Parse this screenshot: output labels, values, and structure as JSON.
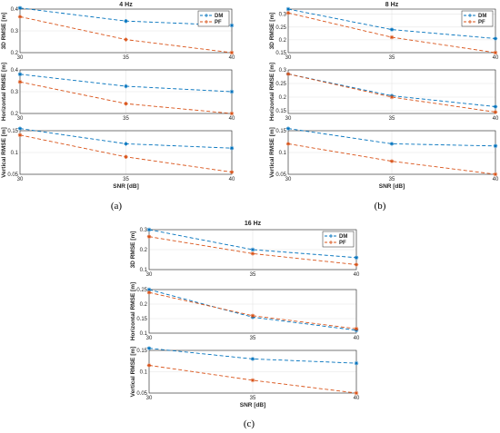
{
  "colors": {
    "DM": "#0072BD",
    "PF": "#D95319",
    "grid": "#e4e4e4",
    "axis": "#262626"
  },
  "chart_data": [
    {
      "caption": "(a)",
      "title": "4 Hz",
      "legend": [
        "DM",
        "PF"
      ],
      "legend_position": "top-right",
      "xlabel": "SNR [dB]",
      "panels": [
        {
          "type": "line",
          "ylabel": "3D RMSE [m]",
          "x": [
            30,
            35,
            40
          ],
          "xlim": [
            30,
            40
          ],
          "ylim": [
            0.2,
            0.4
          ],
          "yticks": [
            "0.2",
            "0.3",
            "0.4"
          ],
          "grid": true,
          "series": [
            {
              "name": "DM",
              "values": [
                0.405,
                0.345,
                0.325
              ]
            },
            {
              "name": "PF",
              "values": [
                0.365,
                0.26,
                0.2
              ]
            }
          ]
        },
        {
          "type": "line",
          "ylabel": "Horizontal RMSE [m]",
          "x": [
            30,
            35,
            40
          ],
          "xlim": [
            30,
            40
          ],
          "ylim": [
            0.2,
            0.4
          ],
          "yticks": [
            "0.2",
            "0.3",
            "0.4"
          ],
          "grid": true,
          "series": [
            {
              "name": "DM",
              "values": [
                0.38,
                0.325,
                0.3
              ]
            },
            {
              "name": "PF",
              "values": [
                0.345,
                0.245,
                0.2
              ]
            }
          ]
        },
        {
          "type": "line",
          "ylabel": "Vertical RMSE [m]",
          "x": [
            30,
            35,
            40
          ],
          "xlim": [
            30,
            40
          ],
          "ylim": [
            0.05,
            0.15
          ],
          "yticks": [
            "0.05",
            "0.1",
            "0.15"
          ],
          "grid": true,
          "series": [
            {
              "name": "DM",
              "values": [
                0.155,
                0.12,
                0.11
              ]
            },
            {
              "name": "PF",
              "values": [
                0.14,
                0.09,
                0.055
              ]
            }
          ]
        }
      ]
    },
    {
      "caption": "(b)",
      "title": "8 Hz",
      "legend": [
        "DM",
        "PF"
      ],
      "legend_position": "top-right",
      "xlabel": "SNR [dB]",
      "panels": [
        {
          "type": "line",
          "ylabel": "3D RMSE [m]",
          "x": [
            30,
            35,
            40
          ],
          "xlim": [
            30,
            40
          ],
          "ylim": [
            0.15,
            0.32
          ],
          "yticks": [
            "0.15",
            "0.2",
            "0.25",
            "0.3"
          ],
          "grid": true,
          "series": [
            {
              "name": "DM",
              "values": [
                0.32,
                0.24,
                0.205
              ]
            },
            {
              "name": "PF",
              "values": [
                0.305,
                0.21,
                0.15
              ]
            }
          ]
        },
        {
          "type": "line",
          "ylabel": "Horizontal RMSE [m]",
          "x": [
            30,
            35,
            40
          ],
          "xlim": [
            30,
            40
          ],
          "ylim": [
            0.14,
            0.3
          ],
          "yticks": [
            "0.15",
            "0.2",
            "0.25",
            "0.3"
          ],
          "grid": true,
          "series": [
            {
              "name": "DM",
              "values": [
                0.285,
                0.205,
                0.165
              ]
            },
            {
              "name": "PF",
              "values": [
                0.285,
                0.2,
                0.145
              ]
            }
          ]
        },
        {
          "type": "line",
          "ylabel": "Vertical RMSE [m]",
          "x": [
            30,
            35,
            40
          ],
          "xlim": [
            30,
            40
          ],
          "ylim": [
            0.05,
            0.15
          ],
          "yticks": [
            "0.05",
            "0.1",
            "0.15"
          ],
          "grid": true,
          "series": [
            {
              "name": "DM",
              "values": [
                0.155,
                0.12,
                0.115
              ]
            },
            {
              "name": "PF",
              "values": [
                0.12,
                0.08,
                0.05
              ]
            }
          ]
        }
      ]
    },
    {
      "caption": "(c)",
      "title": "16 Hz",
      "legend": [
        "DM",
        "PF"
      ],
      "legend_position": "top-right",
      "xlabel": "SNR [dB]",
      "panels": [
        {
          "type": "line",
          "ylabel": "3D RMSE [m]",
          "x": [
            30,
            35,
            40
          ],
          "xlim": [
            30,
            40
          ],
          "ylim": [
            0.1,
            0.3
          ],
          "yticks": [
            "0.1",
            "0.2",
            "0.3"
          ],
          "grid": true,
          "series": [
            {
              "name": "DM",
              "values": [
                0.3,
                0.2,
                0.16
              ]
            },
            {
              "name": "PF",
              "values": [
                0.265,
                0.18,
                0.125
              ]
            }
          ]
        },
        {
          "type": "line",
          "ylabel": "Horizontal RMSE [m]",
          "x": [
            30,
            35,
            40
          ],
          "xlim": [
            30,
            40
          ],
          "ylim": [
            0.1,
            0.25
          ],
          "yticks": [
            "0.1",
            "0.15",
            "0.2",
            "0.25"
          ],
          "grid": true,
          "series": [
            {
              "name": "DM",
              "values": [
                0.25,
                0.155,
                0.11
              ]
            },
            {
              "name": "PF",
              "values": [
                0.24,
                0.16,
                0.115
              ]
            }
          ]
        },
        {
          "type": "line",
          "ylabel": "Vertical RMSE [m]",
          "x": [
            30,
            35,
            40
          ],
          "xlim": [
            30,
            40
          ],
          "ylim": [
            0.05,
            0.15
          ],
          "yticks": [
            "0.05",
            "0.1",
            "0.15"
          ],
          "grid": true,
          "series": [
            {
              "name": "DM",
              "values": [
                0.155,
                0.13,
                0.12
              ]
            },
            {
              "name": "PF",
              "values": [
                0.115,
                0.08,
                0.05
              ]
            }
          ]
        }
      ]
    }
  ]
}
